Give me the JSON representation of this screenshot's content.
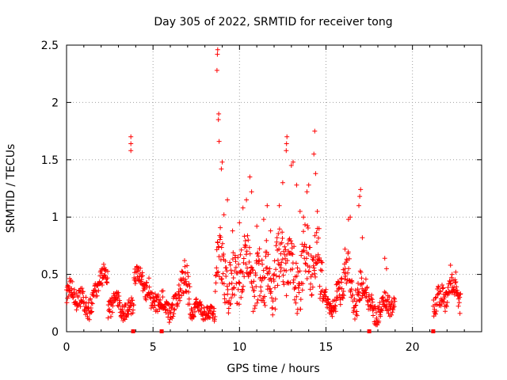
{
  "chart_data": {
    "type": "scatter",
    "title": "Day 305 of 2022, SRMTID for receiver tong",
    "xlabel": "GPS time / hours",
    "ylabel": "SRMTID / TECUs",
    "xlim": [
      0,
      24
    ],
    "ylim": [
      0,
      2.5
    ],
    "xticks": [
      0,
      5,
      10,
      15,
      20
    ],
    "yticks": [
      0,
      0.5,
      1,
      1.5,
      2,
      2.5
    ],
    "xtick_labels": [
      "0",
      "5",
      "10",
      "15",
      "20"
    ],
    "ytick_labels": [
      "0",
      "0.5",
      "1",
      "1.5",
      "2",
      "2.5"
    ],
    "grid": true,
    "marker": "+",
    "color": "#ff0000",
    "gap_markers_x": [
      3.85,
      5.5,
      17.5,
      21.2
    ],
    "series": [
      {
        "name": "SRMTID",
        "segments": [
          {
            "start": 0.0,
            "end": 1.9,
            "base": 0.28,
            "amp": 0.12,
            "noise": 0.09
          },
          {
            "start": 1.9,
            "end": 2.4,
            "base": 0.52,
            "amp": 0.12,
            "noise": 0.08
          },
          {
            "start": 2.4,
            "end": 3.9,
            "base": 0.22,
            "amp": 0.08,
            "noise": 0.08
          },
          {
            "start": 3.9,
            "end": 4.8,
            "base": 0.45,
            "amp": 0.1,
            "noise": 0.08
          },
          {
            "start": 4.8,
            "end": 6.5,
            "base": 0.24,
            "amp": 0.08,
            "noise": 0.08
          },
          {
            "start": 6.5,
            "end": 7.2,
            "base": 0.45,
            "amp": 0.25,
            "noise": 0.15
          },
          {
            "start": 7.2,
            "end": 8.6,
            "base": 0.18,
            "amp": 0.06,
            "noise": 0.06
          },
          {
            "start": 8.6,
            "end": 11.5,
            "base": 0.5,
            "amp": 0.2,
            "noise": 0.22
          },
          {
            "start": 11.5,
            "end": 14.8,
            "base": 0.55,
            "amp": 0.25,
            "noise": 0.25
          },
          {
            "start": 14.8,
            "end": 15.6,
            "base": 0.25,
            "amp": 0.08,
            "noise": 0.07
          },
          {
            "start": 15.6,
            "end": 17.4,
            "base": 0.4,
            "amp": 0.2,
            "noise": 0.14
          },
          {
            "start": 17.4,
            "end": 19.0,
            "base": 0.22,
            "amp": 0.1,
            "noise": 0.09
          },
          {
            "start": 21.2,
            "end": 22.8,
            "base": 0.32,
            "amp": 0.12,
            "noise": 0.1
          }
        ],
        "points": [
          [
            3.72,
            1.58
          ],
          [
            3.72,
            1.64
          ],
          [
            3.72,
            1.7
          ],
          [
            8.7,
            2.28
          ],
          [
            8.72,
            2.42
          ],
          [
            8.74,
            2.46
          ],
          [
            8.78,
            1.85
          ],
          [
            8.8,
            1.9
          ],
          [
            8.82,
            1.66
          ],
          [
            8.95,
            1.42
          ],
          [
            9.0,
            1.48
          ],
          [
            9.3,
            1.15
          ],
          [
            9.1,
            1.02
          ],
          [
            9.6,
            0.88
          ],
          [
            10.0,
            0.95
          ],
          [
            10.2,
            1.08
          ],
          [
            10.4,
            1.15
          ],
          [
            10.6,
            1.35
          ],
          [
            10.7,
            1.22
          ],
          [
            11.0,
            0.92
          ],
          [
            11.4,
            0.98
          ],
          [
            11.6,
            1.1
          ],
          [
            11.8,
            0.88
          ],
          [
            12.3,
            1.1
          ],
          [
            12.5,
            1.3
          ],
          [
            12.7,
            1.58
          ],
          [
            12.72,
            1.64
          ],
          [
            12.74,
            1.7
          ],
          [
            13.0,
            1.45
          ],
          [
            13.1,
            1.48
          ],
          [
            13.3,
            1.28
          ],
          [
            13.5,
            1.05
          ],
          [
            13.7,
            1.0
          ],
          [
            13.9,
            1.22
          ],
          [
            14.0,
            1.28
          ],
          [
            14.3,
            1.55
          ],
          [
            14.35,
            1.75
          ],
          [
            14.4,
            1.38
          ],
          [
            14.5,
            1.05
          ],
          [
            14.6,
            0.9
          ],
          [
            16.1,
            0.72
          ],
          [
            16.3,
            0.98
          ],
          [
            16.4,
            1.0
          ],
          [
            16.9,
            1.1
          ],
          [
            16.95,
            1.18
          ],
          [
            17.0,
            1.24
          ],
          [
            17.1,
            0.82
          ],
          [
            18.4,
            0.64
          ],
          [
            18.5,
            0.55
          ],
          [
            22.2,
            0.58
          ],
          [
            22.5,
            0.52
          ]
        ]
      }
    ]
  }
}
